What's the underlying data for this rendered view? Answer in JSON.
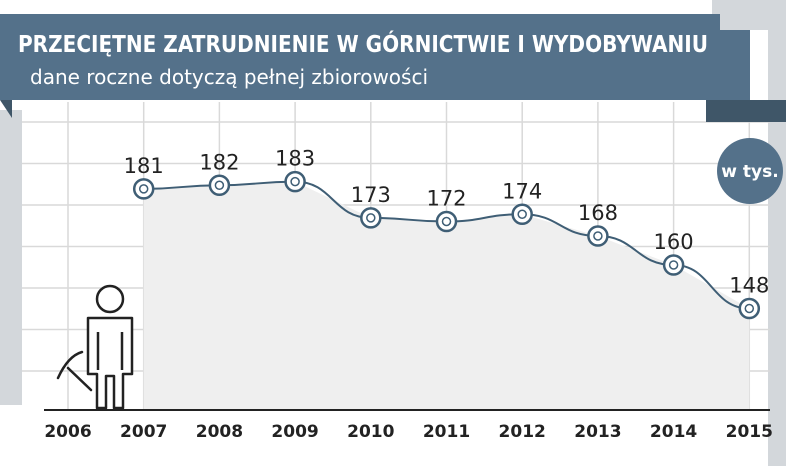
{
  "header": {
    "title": "PRZECIĘTNE ZATRUDNIENIE  W GÓRNICTWIE I WYDOBYWANIU",
    "subtitle": "dane roczne dotyczą pełnej zbiorowości"
  },
  "colors": {
    "banner": "#54718a",
    "banner_dark": "#3f5668",
    "frame": "#d3d7db",
    "grid": "#d9d9d9",
    "line": "#3f5e75",
    "area": "#efefef",
    "marker_fill": "#ffffff"
  },
  "icons": [
    "miner-figure-icon",
    "pickaxe-icon"
  ],
  "chart_data": {
    "type": "line",
    "title": "PRZECIĘTNE ZATRUDNIENIE  W GÓRNICTWIE I WYDOBYWANIU",
    "subtitle": "dane roczne dotyczą pełnej zbiorowości",
    "unit": "w tys.",
    "categories": [
      "2006",
      "2007",
      "2008",
      "2009",
      "2010",
      "2011",
      "2012",
      "2013",
      "2014",
      "2015"
    ],
    "x": [
      "2007",
      "2008",
      "2009",
      "2010",
      "2011",
      "2012",
      "2013",
      "2014",
      "2015"
    ],
    "values": [
      181,
      182,
      183,
      173,
      172,
      174,
      168,
      160,
      148
    ],
    "ylim": [
      120,
      200
    ],
    "grid": true,
    "area_fill": true
  }
}
